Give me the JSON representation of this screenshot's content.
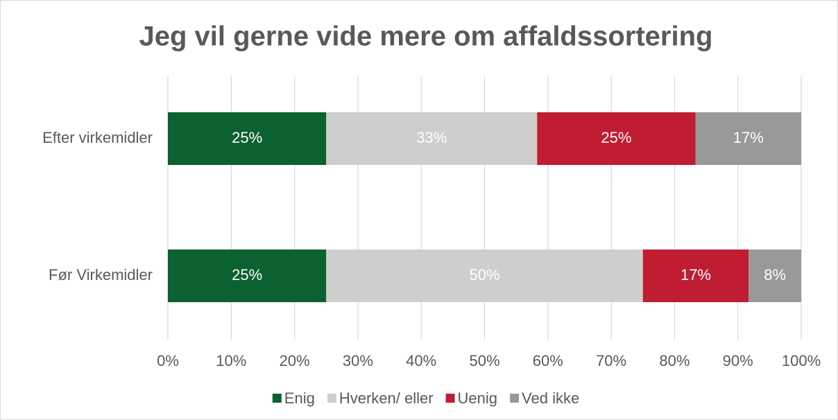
{
  "chart_data": {
    "type": "stacked-barh",
    "title": "Jeg vil gerne vide mere om affaldssortering",
    "categories": [
      "Efter virkemidler",
      "Før Virkemidler"
    ],
    "series": [
      {
        "name": "Enig",
        "color": "#0b6130",
        "values": [
          25,
          25
        ],
        "value_labels": [
          "25%",
          "25%"
        ]
      },
      {
        "name": "Hverken/ eller",
        "color": "#d0cecd",
        "values": [
          33.3,
          50
        ],
        "value_labels": [
          "33%",
          "50%"
        ]
      },
      {
        "name": "Uenig",
        "color": "#c01c32",
        "values": [
          25,
          16.7
        ],
        "value_labels": [
          "25%",
          "17%"
        ]
      },
      {
        "name": "Ved ikke",
        "color": "#999999",
        "values": [
          16.7,
          8.3
        ],
        "value_labels": [
          "17%",
          "8%"
        ]
      }
    ],
    "xlim": [
      0,
      100
    ],
    "xticks": [
      {
        "value": 0,
        "label": "0%"
      },
      {
        "value": 10,
        "label": "10%"
      },
      {
        "value": 20,
        "label": "20%"
      },
      {
        "value": 30,
        "label": "30%"
      },
      {
        "value": 40,
        "label": "40%"
      },
      {
        "value": 50,
        "label": "50%"
      },
      {
        "value": 60,
        "label": "60%"
      },
      {
        "value": 70,
        "label": "70%"
      },
      {
        "value": 80,
        "label": "80%"
      },
      {
        "value": 90,
        "label": "90%"
      },
      {
        "value": 100,
        "label": "100%"
      }
    ],
    "grid": true,
    "legend": "bottom"
  }
}
